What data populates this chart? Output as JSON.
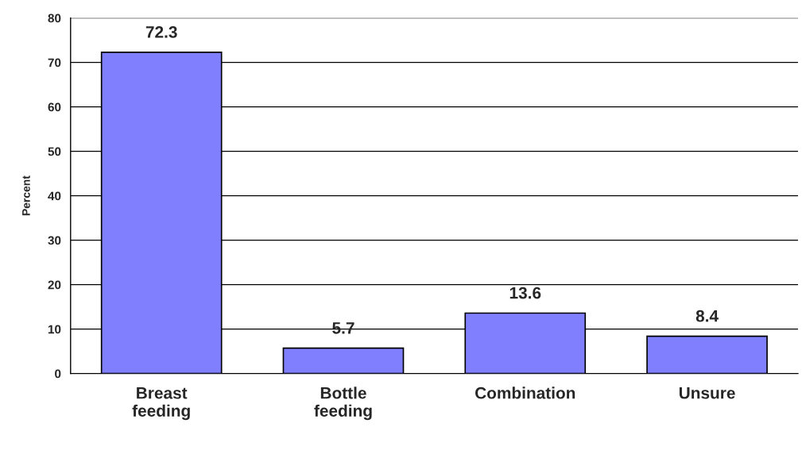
{
  "chart_data": {
    "type": "bar",
    "ylabel": "Percent",
    "categories": [
      "Breast feeding",
      "Bottle feeding",
      "Combination",
      "Unsure"
    ],
    "values": [
      72.3,
      5.7,
      13.6,
      8.4
    ],
    "color": "#8080ff",
    "ylim": [
      0,
      80
    ],
    "yticks": [
      0,
      10,
      20,
      30,
      40,
      50,
      60,
      70,
      80
    ],
    "grid": "y",
    "data_labels": true
  }
}
